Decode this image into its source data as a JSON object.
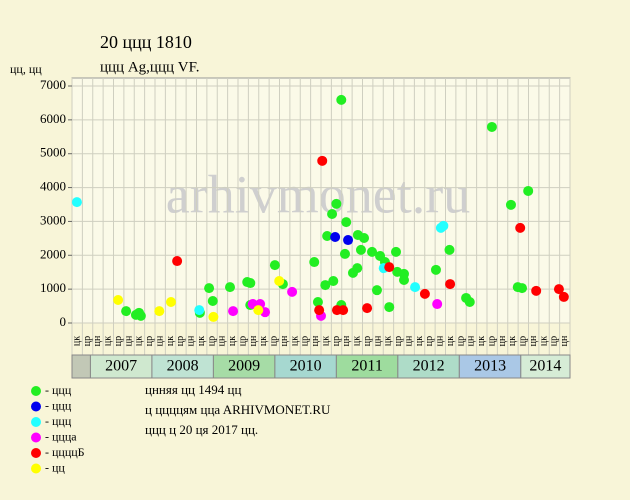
{
  "chart_data": {
    "type": "scatter",
    "title": "20 ццц 1810",
    "subtitle": "ццц Ag,ццц VF.",
    "y_label": "цц, цц",
    "watermark": "arhivmonet.ru",
    "xlim": [
      2006.7,
      2014.8
    ],
    "ylim": [
      0,
      7000
    ],
    "yticks": [
      0,
      1000,
      2000,
      3000,
      4000,
      5000,
      6000,
      7000
    ],
    "grid": true,
    "month_labels": [
      "цк",
      "цр",
      "цн",
      "цк",
      "цр",
      "цн",
      "цк",
      "цр",
      "цн",
      "цк",
      "цр",
      "цн",
      "цк",
      "цр",
      "цн",
      "цк",
      "цр",
      "цн",
      "цк",
      "цр",
      "цн",
      "цк",
      "цр",
      "цн",
      "цк",
      "цр",
      "цн",
      "цк",
      "цр",
      "цн",
      "цк",
      "цр",
      "цн",
      "цк",
      "цр",
      "цн",
      "цк",
      "цр",
      "цн",
      "цк",
      "цр",
      "цн",
      "цк",
      "цр",
      "цн",
      "цк",
      "цр",
      "цн"
    ],
    "years": [
      {
        "label": "2007",
        "start": 2007,
        "color": "#cfe8cf"
      },
      {
        "label": "2008",
        "start": 2008,
        "color": "#bfe3d3"
      },
      {
        "label": "2009",
        "start": 2009,
        "color": "#a6dca6"
      },
      {
        "label": "2010",
        "start": 2010,
        "color": "#a6d8d0"
      },
      {
        "label": "2011",
        "start": 2011,
        "color": "#9edc9e"
      },
      {
        "label": "2012",
        "start": 2012,
        "color": "#aedcc8"
      },
      {
        "label": "2013",
        "start": 2013,
        "color": "#aac8e6"
      },
      {
        "label": "2014",
        "start": 2014,
        "color": "#d6ecd6"
      }
    ],
    "series": [
      {
        "name": "- ццц",
        "color": "#22ee22",
        "x": [
          2007.58,
          2007.74,
          2007.79,
          2007.82,
          2008.78,
          2008.93,
          2008.99,
          2009.27,
          2009.55,
          2009.6,
          2009.6,
          2010.0,
          2010.13,
          2010.64,
          2010.7,
          2010.82,
          2010.85,
          2010.93,
          2011.0,
          2010.95,
          2011.08,
          2011.08,
          2011.16,
          2011.14,
          2011.27,
          2011.34,
          2011.35,
          2011.4,
          2011.45,
          2011.58,
          2011.66,
          2011.71,
          2011.79,
          2011.86,
          2011.97,
          2011.99,
          2012.1,
          2012.1,
          2012.62,
          2012.84,
          2013.11,
          2013.17,
          2013.53,
          2013.84,
          2013.95,
          2014.02,
          2014.12
        ],
        "values": [
          350,
          240,
          300,
          210,
          300,
          1030,
          650,
          1060,
          1210,
          1180,
          530,
          1710,
          1150,
          1800,
          620,
          1120,
          2570,
          3220,
          3520,
          1240,
          6590,
          530,
          2980,
          2040,
          1480,
          1620,
          2600,
          2160,
          2510,
          2100,
          970,
          1980,
          1800,
          470,
          2100,
          1510,
          1450,
          1270,
          1570,
          2160,
          740,
          620,
          5790,
          3490,
          1060,
          1030,
          3900
        ]
      },
      {
        "name": "- ццц",
        "color": "#0000ee",
        "x": [
          2010.98,
          2011.19
        ],
        "values": [
          2540,
          2450
        ]
      },
      {
        "name": "- ццц",
        "color": "#22ffff",
        "x": [
          2006.78,
          2008.77,
          2011.77,
          2012.28,
          2012.7,
          2012.74
        ],
        "values": [
          3570,
          380,
          1620,
          1060,
          2810,
          2870
        ]
      },
      {
        "name": "- ццца",
        "color": "#ff00ff",
        "x": [
          2009.32,
          2009.64,
          2009.76,
          2009.84,
          2010.28,
          2010.75,
          2012.64
        ],
        "values": [
          350,
          560,
          560,
          320,
          920,
          210,
          560
        ]
      },
      {
        "name": "- ццццБ",
        "color": "#ff0000",
        "x": [
          2008.41,
          2010.77,
          2010.72,
          2011.01,
          2011.11,
          2011.5,
          2011.86,
          2012.44,
          2012.85,
          2013.99,
          2014.25,
          2014.62,
          2014.7
        ],
        "values": [
          1830,
          4790,
          380,
          380,
          380,
          440,
          1650,
          860,
          1150,
          2810,
          950,
          1000,
          770
        ]
      },
      {
        "name": "- цц",
        "color": "#ffff00",
        "x": [
          2007.45,
          2008.12,
          2008.31,
          2009.0,
          2009.73,
          2010.07
        ],
        "values": [
          680,
          350,
          620,
          180,
          380,
          1240
        ]
      }
    ],
    "notes": [
      "цнняя цц 1494 цц",
      "ц ццццям ццa ARHIVMONET.RU",
      "ццц ц 20 ця 2017 цц."
    ]
  }
}
